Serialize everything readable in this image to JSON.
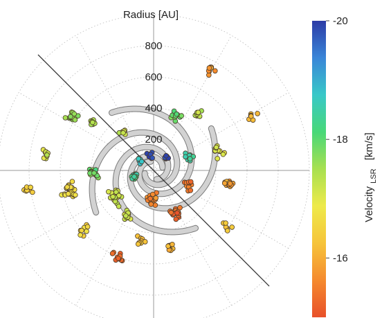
{
  "chart_data": {
    "type": "scatter",
    "coordinate_system": "polar",
    "title": "",
    "r_axis_label": "Radius [AU]",
    "r_ticks": [
      200,
      400,
      600,
      800
    ],
    "r_max": 1000,
    "grid": true,
    "colorbar": {
      "label_main": "Velocity",
      "label_sub": "LSR",
      "label_unit": "[km/s]",
      "min": -15,
      "max": -20,
      "ticks": [
        {
          "value": -20,
          "label": "-20"
        },
        {
          "value": -18,
          "label": "-18"
        },
        {
          "value": -16,
          "label": "-16"
        }
      ],
      "colormap": [
        "#e8502a",
        "#f58a2e",
        "#f6c43a",
        "#eeea4a",
        "#a8e050",
        "#48d878",
        "#38c8c8",
        "#3a86d8",
        "#2c3ba6"
      ]
    },
    "spiral_arms": 4,
    "spiral_arm_color": "#d2d2d2",
    "diagonal_line_angles_deg": [
      135,
      -45
    ],
    "point_size": "small",
    "clusters": [
      {
        "cx": -530,
        "cy": 340,
        "n": 15,
        "s": 60,
        "v": -17.6
      },
      {
        "cx": -390,
        "cy": 310,
        "n": 10,
        "s": 40,
        "v": -17.5
      },
      {
        "cx": -200,
        "cy": 250,
        "n": 6,
        "s": 30,
        "v": -17.3
      },
      {
        "cx": -90,
        "cy": 60,
        "n": 6,
        "s": 25,
        "v": -18.9
      },
      {
        "cx": -20,
        "cy": 95,
        "n": 9,
        "s": 30,
        "v": -19.8
      },
      {
        "cx": 80,
        "cy": 85,
        "n": 8,
        "s": 25,
        "v": -19.9
      },
      {
        "cx": 230,
        "cy": 85,
        "n": 10,
        "s": 40,
        "v": -18.5
      },
      {
        "cx": 410,
        "cy": 120,
        "n": 12,
        "s": 55,
        "v": -17.1
      },
      {
        "cx": 290,
        "cy": 360,
        "n": 10,
        "s": 40,
        "v": -17.3
      },
      {
        "cx": 150,
        "cy": 350,
        "n": 10,
        "s": 40,
        "v": -17.9
      },
      {
        "cx": 640,
        "cy": 340,
        "n": 6,
        "s": 40,
        "v": -16.1
      },
      {
        "cx": 360,
        "cy": 650,
        "n": 8,
        "s": 50,
        "v": -15.8
      },
      {
        "cx": -380,
        "cy": -20,
        "n": 20,
        "s": 50,
        "v": -17.9
      },
      {
        "cx": -530,
        "cy": -130,
        "n": 22,
        "s": 75,
        "v": -16.7
      },
      {
        "cx": -240,
        "cy": -170,
        "n": 20,
        "s": 70,
        "v": -17.2
      },
      {
        "cx": -120,
        "cy": -40,
        "n": 12,
        "s": 40,
        "v": -18.4
      },
      {
        "cx": 0,
        "cy": -180,
        "n": 14,
        "s": 60,
        "v": -15.6
      },
      {
        "cx": 150,
        "cy": -280,
        "n": 20,
        "s": 55,
        "v": -15.3
      },
      {
        "cx": 230,
        "cy": -100,
        "n": 12,
        "s": 50,
        "v": -15.4
      },
      {
        "cx": 490,
        "cy": -90,
        "n": 12,
        "s": 40,
        "v": -15.9
      },
      {
        "cx": -80,
        "cy": -460,
        "n": 10,
        "s": 45,
        "v": -16.2
      },
      {
        "cx": -230,
        "cy": -560,
        "n": 10,
        "s": 55,
        "v": -15.3
      },
      {
        "cx": 100,
        "cy": -500,
        "n": 8,
        "s": 40,
        "v": -16.1
      },
      {
        "cx": -450,
        "cy": -390,
        "n": 8,
        "s": 60,
        "v": -16.6
      },
      {
        "cx": 460,
        "cy": -370,
        "n": 6,
        "s": 60,
        "v": -16.3
      },
      {
        "cx": -170,
        "cy": -290,
        "n": 10,
        "s": 45,
        "v": -17.3
      },
      {
        "cx": -820,
        "cy": -120,
        "n": 8,
        "s": 50,
        "v": -16.4
      },
      {
        "cx": -700,
        "cy": 100,
        "n": 8,
        "s": 50,
        "v": -17.2
      }
    ]
  }
}
